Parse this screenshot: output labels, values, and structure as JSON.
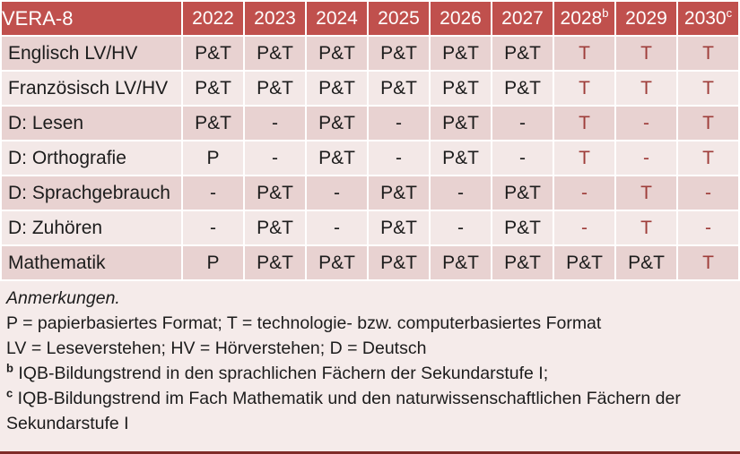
{
  "table": {
    "title": "VERA-8",
    "columns": [
      {
        "label": "2022",
        "sup": ""
      },
      {
        "label": "2023",
        "sup": ""
      },
      {
        "label": "2024",
        "sup": ""
      },
      {
        "label": "2025",
        "sup": ""
      },
      {
        "label": "2026",
        "sup": ""
      },
      {
        "label": "2027",
        "sup": ""
      },
      {
        "label": "2028",
        "sup": "b"
      },
      {
        "label": "2029",
        "sup": ""
      },
      {
        "label": "2030",
        "sup": "c"
      }
    ],
    "rows": [
      {
        "label": "Englisch LV/HV",
        "cells": [
          {
            "text": "P&T",
            "red": false
          },
          {
            "text": "P&T",
            "red": false
          },
          {
            "text": "P&T",
            "red": false
          },
          {
            "text": "P&T",
            "red": false
          },
          {
            "text": "P&T",
            "red": false
          },
          {
            "text": "P&T",
            "red": false
          },
          {
            "text": "T",
            "red": true
          },
          {
            "text": "T",
            "red": true
          },
          {
            "text": "T",
            "red": true
          }
        ]
      },
      {
        "label": "Französisch LV/HV",
        "cells": [
          {
            "text": "P&T",
            "red": false
          },
          {
            "text": "P&T",
            "red": false
          },
          {
            "text": "P&T",
            "red": false
          },
          {
            "text": "P&T",
            "red": false
          },
          {
            "text": "P&T",
            "red": false
          },
          {
            "text": "P&T",
            "red": false
          },
          {
            "text": "T",
            "red": true
          },
          {
            "text": "T",
            "red": true
          },
          {
            "text": "T",
            "red": true
          }
        ]
      },
      {
        "label": "D: Lesen",
        "cells": [
          {
            "text": "P&T",
            "red": false
          },
          {
            "text": "-",
            "red": false
          },
          {
            "text": "P&T",
            "red": false
          },
          {
            "text": "-",
            "red": false
          },
          {
            "text": "P&T",
            "red": false
          },
          {
            "text": "-",
            "red": false
          },
          {
            "text": "T",
            "red": true
          },
          {
            "text": "-",
            "red": true
          },
          {
            "text": "T",
            "red": true
          }
        ]
      },
      {
        "label": "D: Orthografie",
        "cells": [
          {
            "text": "P",
            "red": false
          },
          {
            "text": "-",
            "red": false
          },
          {
            "text": "P&T",
            "red": false
          },
          {
            "text": "-",
            "red": false
          },
          {
            "text": "P&T",
            "red": false
          },
          {
            "text": "-",
            "red": false
          },
          {
            "text": "T",
            "red": true
          },
          {
            "text": "-",
            "red": true
          },
          {
            "text": "T",
            "red": true
          }
        ]
      },
      {
        "label": "D: Sprachgebrauch",
        "cells": [
          {
            "text": "-",
            "red": false
          },
          {
            "text": "P&T",
            "red": false
          },
          {
            "text": "-",
            "red": false
          },
          {
            "text": "P&T",
            "red": false
          },
          {
            "text": "-",
            "red": false
          },
          {
            "text": "P&T",
            "red": false
          },
          {
            "text": "-",
            "red": true
          },
          {
            "text": "T",
            "red": true
          },
          {
            "text": "-",
            "red": true
          }
        ]
      },
      {
        "label": "D: Zuhören",
        "cells": [
          {
            "text": "-",
            "red": false
          },
          {
            "text": "P&T",
            "red": false
          },
          {
            "text": "-",
            "red": false
          },
          {
            "text": "P&T",
            "red": false
          },
          {
            "text": "-",
            "red": false
          },
          {
            "text": "P&T",
            "red": false
          },
          {
            "text": "-",
            "red": true
          },
          {
            "text": "T",
            "red": true
          },
          {
            "text": "-",
            "red": true
          }
        ]
      },
      {
        "label": "Mathematik",
        "cells": [
          {
            "text": "P",
            "red": false
          },
          {
            "text": "P&T",
            "red": false
          },
          {
            "text": "P&T",
            "red": false
          },
          {
            "text": "P&T",
            "red": false
          },
          {
            "text": "P&T",
            "red": false
          },
          {
            "text": "P&T",
            "red": false
          },
          {
            "text": "P&T",
            "red": false
          },
          {
            "text": "P&T",
            "red": false
          },
          {
            "text": "T",
            "red": true
          }
        ]
      }
    ]
  },
  "notes": {
    "heading": "Anmerkungen.",
    "lines": [
      {
        "sup": "",
        "text": "P = papierbasiertes Format; T = technologie- bzw. computerbasiertes Format"
      },
      {
        "sup": "",
        "text": "LV = Leseverstehen; HV = Hörverstehen; D = Deutsch"
      },
      {
        "sup": "b",
        "text": "IQB-Bildungstrend in den sprachlichen Fächern der Sekundarstufe I;"
      },
      {
        "sup": "c",
        "text": "IQB-Bildungstrend im Fach Mathematik und den naturwissenschaftlichen Fächern der Sekundarstufe I"
      }
    ]
  },
  "colors": {
    "header_bg": "#c0504d",
    "header_text": "#ffffff",
    "row_band_dark": "#e8d2d1",
    "row_band_light": "#f3e8e7",
    "notes_bg": "#f5ebea",
    "red_text": "#9e3d3a",
    "body_text": "#1c1c1c",
    "bottom_border": "#7f2b28"
  }
}
